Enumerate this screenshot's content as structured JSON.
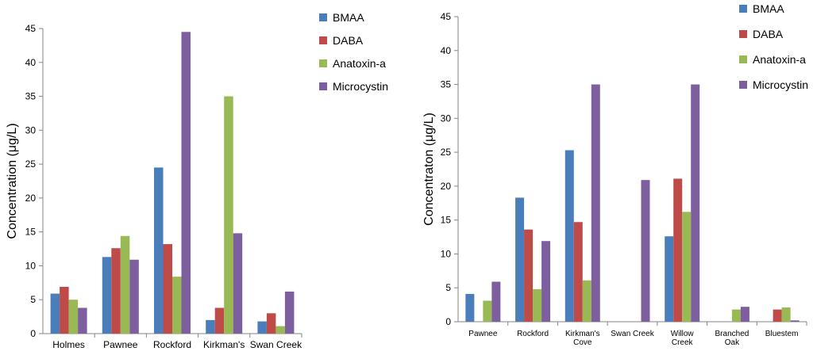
{
  "colors": {
    "BMAA": "#4a7ebb",
    "DABA": "#be4b48",
    "Anatoxin-a": "#98b954",
    "Microcystin": "#7d5fa0",
    "axis": "#868686",
    "text": "#000000"
  },
  "chart_data": [
    {
      "type": "bar",
      "title": "",
      "xlabel": "",
      "ylabel": "Concentration (μg/L)",
      "ylim": [
        0,
        45
      ],
      "yticks": [
        0,
        5,
        10,
        15,
        20,
        25,
        30,
        35,
        40,
        45
      ],
      "grid": false,
      "legend_position": "top-right",
      "categories": [
        "Holmes",
        "Pawnee",
        "Rockford",
        "Kirkman's",
        "Swan Creek"
      ],
      "series": [
        {
          "name": "BMAA",
          "values": [
            5.9,
            11.3,
            24.5,
            2.0,
            1.8
          ]
        },
        {
          "name": "DABA",
          "values": [
            6.9,
            12.6,
            13.2,
            3.8,
            3.0
          ]
        },
        {
          "name": "Anatoxin-a",
          "values": [
            5.0,
            14.4,
            8.4,
            35.0,
            1.1
          ]
        },
        {
          "name": "Microcystin",
          "values": [
            3.8,
            10.9,
            44.5,
            14.8,
            6.2
          ]
        }
      ]
    },
    {
      "type": "bar",
      "title": "",
      "xlabel": "",
      "ylabel": "Concentraton (μg/L)",
      "ylim": [
        0,
        45
      ],
      "yticks": [
        0,
        5,
        10,
        15,
        20,
        25,
        30,
        35,
        40,
        45
      ],
      "grid": false,
      "legend_position": "top-right",
      "categories": [
        [
          "Pawnee"
        ],
        [
          "Rockford"
        ],
        [
          "Kirkman's",
          "Cove"
        ],
        [
          "Swan Creek"
        ],
        [
          "Willow",
          "Creek"
        ],
        [
          "Branched",
          "Oak"
        ],
        [
          "Bluestem"
        ]
      ],
      "series": [
        {
          "name": "BMAA",
          "values": [
            4.1,
            18.3,
            25.3,
            0,
            12.6,
            0,
            0
          ]
        },
        {
          "name": "DABA",
          "values": [
            0,
            13.6,
            14.7,
            0,
            21.1,
            0,
            1.8
          ]
        },
        {
          "name": "Anatoxin-a",
          "values": [
            3.1,
            4.8,
            6.1,
            0,
            16.2,
            1.8,
            2.1
          ]
        },
        {
          "name": "Microcystin",
          "values": [
            5.9,
            11.9,
            35.0,
            20.9,
            35.0,
            2.2,
            0.2
          ]
        }
      ]
    }
  ]
}
